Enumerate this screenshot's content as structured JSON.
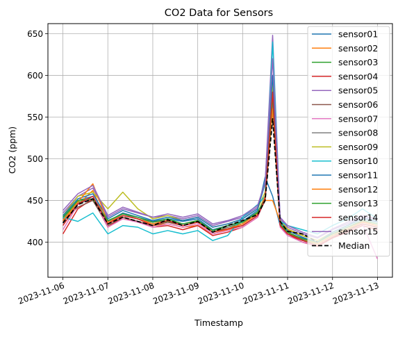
{
  "chart_data": {
    "type": "line",
    "title": "CO2 Data for Sensors",
    "xlabel": "Timestamp",
    "ylabel": "CO2 (ppm)",
    "xlim": [
      "2023-11-05T16:00",
      "2023-11-13T08:00"
    ],
    "ylim": [
      358,
      662
    ],
    "grid": true,
    "legend_position": "top-right",
    "x_ticks": [
      "2023-11-06",
      "2023-11-07",
      "2023-11-08",
      "2023-11-09",
      "2023-11-10",
      "2023-11-11",
      "2023-11-12",
      "2023-11-13"
    ],
    "y_ticks": [
      400,
      450,
      500,
      550,
      600,
      650
    ],
    "x": [
      "2023-11-06T00:00",
      "2023-11-06T08:00",
      "2023-11-06T16:00",
      "2023-11-07T00:00",
      "2023-11-07T08:00",
      "2023-11-07T16:00",
      "2023-11-08T00:00",
      "2023-11-08T08:00",
      "2023-11-08T16:00",
      "2023-11-09T00:00",
      "2023-11-09T08:00",
      "2023-11-09T16:00",
      "2023-11-10T00:00",
      "2023-11-10T08:00",
      "2023-11-10T12:00",
      "2023-11-10T16:00",
      "2023-11-10T20:00",
      "2023-11-11T00:00",
      "2023-11-11T08:00",
      "2023-11-11T16:00",
      "2023-11-12T00:00",
      "2023-11-12T08:00",
      "2023-11-12T16:00",
      "2023-11-13T00:00"
    ],
    "series": [
      {
        "name": "sensor01",
        "color": "#1f77b4",
        "style": "solid",
        "values": [
          430,
          450,
          455,
          425,
          435,
          430,
          425,
          428,
          425,
          428,
          415,
          420,
          425,
          438,
          478,
          455,
          420,
          410,
          405,
          400,
          412,
          420,
          430,
          425
        ]
      },
      {
        "name": "sensor02",
        "color": "#ff7f0e",
        "style": "solid",
        "values": [
          425,
          445,
          462,
          420,
          428,
          425,
          420,
          422,
          418,
          420,
          410,
          415,
          420,
          432,
          450,
          450,
          425,
          415,
          408,
          402,
          410,
          418,
          425,
          420
        ]
      },
      {
        "name": "sensor03",
        "color": "#2ca02c",
        "style": "solid",
        "values": [
          428,
          448,
          450,
          422,
          432,
          428,
          422,
          425,
          420,
          425,
          412,
          418,
          422,
          435,
          455,
          575,
          420,
          412,
          402,
          398,
          408,
          415,
          422,
          418
        ]
      },
      {
        "name": "sensor04",
        "color": "#d62728",
        "style": "solid",
        "values": [
          410,
          440,
          452,
          418,
          430,
          425,
          418,
          420,
          415,
          420,
          408,
          412,
          418,
          430,
          452,
          570,
          422,
          410,
          400,
          395,
          405,
          412,
          420,
          415
        ]
      },
      {
        "name": "sensor05",
        "color": "#9467bd",
        "style": "solid",
        "values": [
          435,
          455,
          465,
          430,
          440,
          435,
          430,
          432,
          428,
          432,
          420,
          425,
          430,
          442,
          470,
          648,
          428,
          418,
          410,
          405,
          415,
          422,
          430,
          428
        ]
      },
      {
        "name": "sensor06",
        "color": "#8c564b",
        "style": "solid",
        "values": [
          425,
          442,
          450,
          420,
          430,
          425,
          420,
          424,
          420,
          424,
          412,
          416,
          420,
          432,
          450,
          560,
          420,
          410,
          403,
          400,
          410,
          416,
          424,
          420
        ]
      },
      {
        "name": "sensor07",
        "color": "#e377c2",
        "style": "solid",
        "values": [
          415,
          445,
          455,
          418,
          428,
          424,
          418,
          422,
          418,
          422,
          410,
          414,
          418,
          430,
          455,
          600,
          418,
          408,
          400,
          396,
          406,
          414,
          422,
          380
        ]
      },
      {
        "name": "sensor08",
        "color": "#7f7f7f",
        "style": "solid",
        "values": [
          428,
          446,
          452,
          424,
          434,
          428,
          424,
          426,
          422,
          426,
          414,
          418,
          424,
          434,
          452,
          570,
          422,
          412,
          404,
          400,
          410,
          418,
          426,
          422
        ]
      },
      {
        "name": "sensor09",
        "color": "#bcbd22",
        "style": "solid",
        "values": [
          432,
          455,
          460,
          440,
          460,
          440,
          428,
          432,
          426,
          430,
          418,
          422,
          428,
          440,
          460,
          590,
          426,
          416,
          408,
          402,
          412,
          420,
          428,
          424
        ]
      },
      {
        "name": "sensor10",
        "color": "#17becf",
        "style": "solid",
        "values": [
          430,
          425,
          435,
          410,
          420,
          418,
          410,
          414,
          410,
          414,
          402,
          408,
          430,
          445,
          455,
          640,
          425,
          420,
          415,
          410,
          420,
          428,
          440,
          428
        ]
      },
      {
        "name": "sensor11",
        "color": "#1f77b4",
        "style": "solid",
        "values": [
          432,
          452,
          458,
          428,
          438,
          432,
          426,
          430,
          426,
          430,
          418,
          422,
          428,
          440,
          470,
          600,
          424,
          414,
          406,
          400,
          412,
          420,
          428,
          424
        ]
      },
      {
        "name": "sensor12",
        "color": "#ff7f0e",
        "style": "solid",
        "values": [
          426,
          448,
          470,
          424,
          432,
          428,
          422,
          426,
          420,
          424,
          412,
          416,
          422,
          434,
          455,
          560,
          422,
          412,
          404,
          398,
          408,
          416,
          424,
          420
        ]
      },
      {
        "name": "sensor13",
        "color": "#2ca02c",
        "style": "solid",
        "values": [
          430,
          450,
          452,
          426,
          434,
          430,
          424,
          428,
          422,
          426,
          414,
          420,
          424,
          436,
          452,
          575,
          422,
          412,
          404,
          400,
          410,
          418,
          426,
          422
        ]
      },
      {
        "name": "sensor14",
        "color": "#d62728",
        "style": "solid",
        "values": [
          420,
          446,
          455,
          422,
          432,
          428,
          420,
          426,
          420,
          424,
          412,
          416,
          420,
          432,
          452,
          580,
          420,
          410,
          402,
          396,
          406,
          414,
          422,
          418
        ]
      },
      {
        "name": "sensor15",
        "color": "#9467bd",
        "style": "solid",
        "values": [
          438,
          458,
          468,
          432,
          442,
          436,
          430,
          434,
          430,
          434,
          422,
          426,
          432,
          444,
          472,
          620,
          430,
          420,
          412,
          406,
          416,
          424,
          432,
          428
        ]
      },
      {
        "name": "Median",
        "color": "#000000",
        "style": "dashed",
        "values": [
          423,
          445,
          452,
          422,
          430,
          425,
          420,
          427,
          420,
          425,
          412,
          420,
          426,
          433,
          450,
          548,
          425,
          413,
          410,
          400,
          null,
          null,
          null,
          null
        ]
      }
    ]
  }
}
